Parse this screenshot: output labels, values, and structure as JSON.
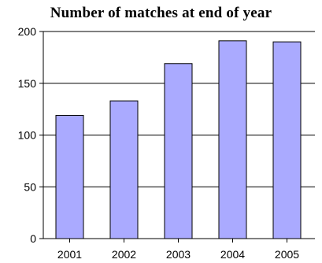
{
  "chart_data": {
    "type": "bar",
    "title": "Number of matches at end of year",
    "xlabel": "",
    "ylabel": "",
    "categories": [
      "2001",
      "2002",
      "2003",
      "2004",
      "2005"
    ],
    "values": [
      119,
      133,
      169,
      191,
      190
    ],
    "ylim": [
      0,
      200
    ],
    "yticks": [
      "0",
      "50",
      "100",
      "150",
      "200"
    ],
    "grid": true,
    "legend": "none",
    "bar_color": "#aaaaff",
    "bar_edge_color": "#000000"
  }
}
